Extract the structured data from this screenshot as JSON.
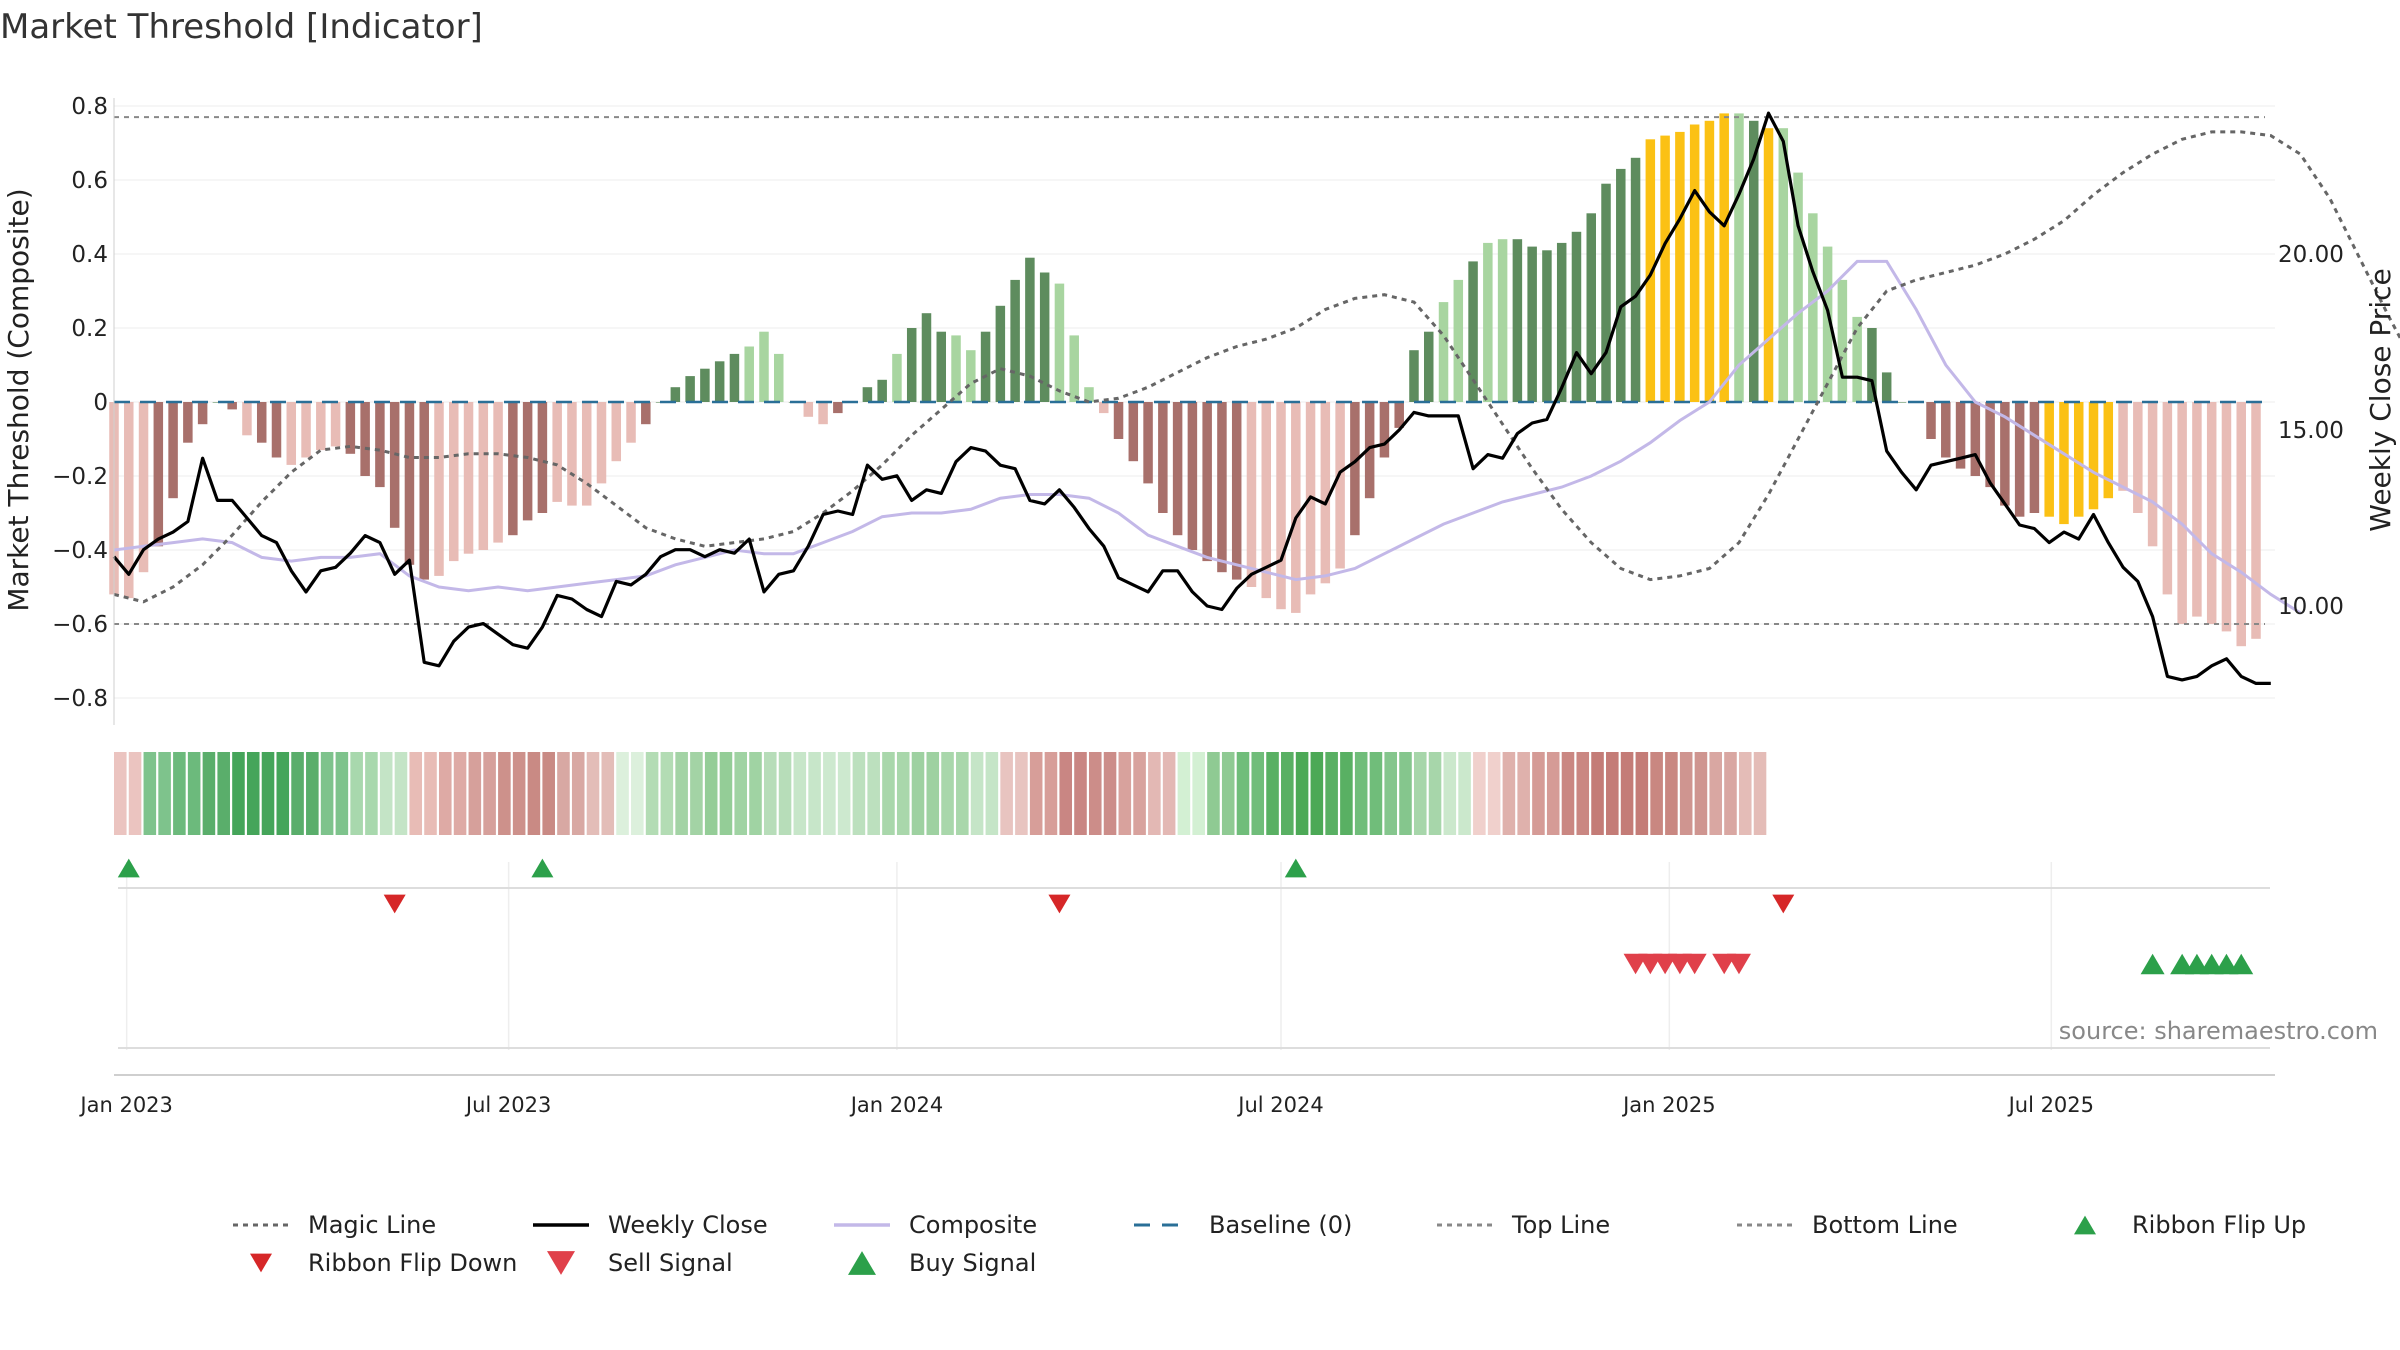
{
  "chart_data": {
    "type": "bar",
    "title": "Market Threshold [Indicator]",
    "ylabel_left": "Market Threshold (Composite)",
    "ylabel_right": "Weekly Close Price",
    "ylim_left": [
      -0.88,
      0.86
    ],
    "ylim_right": [
      7.0,
      26.0
    ],
    "yticks_left": [
      {
        "v": 0.8,
        "label": "0.8"
      },
      {
        "v": 0.6,
        "label": "0.6"
      },
      {
        "v": 0.4,
        "label": "0.4"
      },
      {
        "v": 0.2,
        "label": "0.2"
      },
      {
        "v": 0.0,
        "label": "0"
      },
      {
        "v": -0.2,
        "label": "−0.2"
      },
      {
        "v": -0.4,
        "label": "−0.4"
      },
      {
        "v": -0.6,
        "label": "−0.6"
      },
      {
        "v": -0.8,
        "label": "−0.8"
      }
    ],
    "yticks_right": [
      {
        "v": 20.0,
        "label": "20.00"
      },
      {
        "v": 15.0,
        "label": "15.00"
      },
      {
        "v": 10.0,
        "label": "10.00"
      }
    ],
    "x_range": [
      "2022-12-26",
      "2025-10-15"
    ],
    "xticks": [
      {
        "date": "2023-01-01",
        "label": "Jan 2023"
      },
      {
        "date": "2023-07-01",
        "label": "Jul 2023"
      },
      {
        "date": "2024-01-01",
        "label": "Jan 2024"
      },
      {
        "date": "2024-07-01",
        "label": "Jul 2024"
      },
      {
        "date": "2025-01-01",
        "label": "Jan 2025"
      },
      {
        "date": "2025-07-01",
        "label": "Jul 2025"
      }
    ],
    "start_date": "2022-12-26",
    "week_step_days": 7,
    "top_line": 0.77,
    "bottom_line": -0.6,
    "baseline": 0,
    "composite_bars": [
      -0.52,
      -0.53,
      -0.46,
      -0.39,
      -0.26,
      -0.11,
      -0.06,
      0.0,
      -0.02,
      -0.09,
      -0.11,
      -0.15,
      -0.17,
      -0.15,
      -0.13,
      -0.12,
      -0.14,
      -0.2,
      -0.23,
      -0.34,
      -0.44,
      -0.48,
      -0.47,
      -0.43,
      -0.41,
      -0.4,
      -0.38,
      -0.36,
      -0.32,
      -0.3,
      -0.27,
      -0.28,
      -0.28,
      -0.22,
      -0.16,
      -0.11,
      -0.06,
      0.0,
      0.04,
      0.07,
      0.09,
      0.11,
      0.13,
      0.15,
      0.19,
      0.13,
      0.0,
      -0.04,
      -0.06,
      -0.03,
      0.0,
      0.04,
      0.06,
      0.13,
      0.2,
      0.24,
      0.19,
      0.18,
      0.14,
      0.19,
      0.26,
      0.33,
      0.39,
      0.35,
      0.32,
      0.18,
      0.04,
      -0.03,
      -0.1,
      -0.16,
      -0.22,
      -0.3,
      -0.36,
      -0.4,
      -0.43,
      -0.46,
      -0.48,
      -0.5,
      -0.53,
      -0.56,
      -0.57,
      -0.52,
      -0.49,
      -0.45,
      -0.36,
      -0.26,
      -0.15,
      -0.07,
      0.14,
      0.19,
      0.27,
      0.33,
      0.38,
      0.43,
      0.44,
      0.44,
      0.42,
      0.41,
      0.43,
      0.46,
      0.51,
      0.59,
      0.63,
      0.66,
      0.71,
      0.72,
      0.73,
      0.75,
      0.76,
      0.78,
      0.78,
      0.76,
      0.74,
      0.74,
      0.62,
      0.51,
      0.42,
      0.33,
      0.23,
      0.2,
      0.08,
      0.0,
      0.0,
      -0.1,
      -0.15,
      -0.18,
      -0.2,
      -0.23,
      -0.28,
      -0.31,
      -0.3,
      -0.31,
      -0.33,
      -0.31,
      -0.29,
      -0.26,
      -0.24,
      -0.3,
      -0.39,
      -0.52,
      -0.6,
      -0.58,
      -0.6,
      -0.62,
      -0.66,
      -0.64
    ],
    "composite_bar_colors_legend": {
      "strong_positive": "#5e8c5e",
      "weak_positive": "#a8d5a0",
      "strong_negative": "#a8706b",
      "weak_negative": "#e8bcb6",
      "extreme": "#fbc114"
    },
    "bar_shades": "wwwsssssswsswwwwsssssswwwwwssswwwwwwssssssswwwswwsssswssswwssssswwwwssssssssswwwwwwwsssssswwswwsssssssssoooooowsowwwwwwssssssssssssooooo",
    "weekly_close": [
      11.4,
      10.9,
      11.6,
      11.9,
      12.1,
      12.4,
      14.2,
      13.0,
      13.0,
      12.5,
      12.0,
      11.8,
      11.0,
      10.4,
      11.0,
      11.1,
      11.5,
      12.0,
      11.8,
      10.9,
      11.3,
      8.4,
      8.3,
      9.0,
      9.4,
      9.5,
      9.2,
      8.9,
      8.8,
      9.4,
      10.3,
      10.2,
      9.9,
      9.7,
      10.7,
      10.6,
      10.9,
      11.4,
      11.6,
      11.6,
      11.4,
      11.6,
      11.5,
      11.9,
      10.4,
      10.9,
      11.0,
      11.7,
      12.6,
      12.7,
      12.6,
      14.0,
      13.6,
      13.7,
      13.0,
      13.3,
      13.2,
      14.1,
      14.5,
      14.4,
      14.0,
      13.9,
      13.0,
      12.9,
      13.3,
      12.8,
      12.2,
      11.7,
      10.8,
      10.6,
      10.4,
      11.0,
      11.0,
      10.4,
      10.0,
      9.9,
      10.5,
      10.9,
      11.1,
      11.3,
      12.5,
      13.1,
      12.9,
      13.8,
      14.1,
      14.5,
      14.6,
      15.0,
      15.5,
      15.4,
      15.4,
      15.4,
      13.9,
      14.3,
      14.2,
      14.9,
      15.2,
      15.3,
      16.2,
      17.2,
      16.6,
      17.2,
      18.5,
      18.8,
      19.4,
      20.3,
      21.0,
      21.8,
      21.2,
      20.8,
      21.7,
      22.7,
      24.0,
      23.2,
      20.8,
      19.5,
      18.4,
      16.5,
      16.5,
      16.4,
      14.4,
      13.8,
      13.3,
      14.0,
      14.1,
      14.2,
      14.3,
      13.5,
      12.9,
      12.3,
      12.2,
      11.8,
      12.1,
      11.9,
      12.6,
      11.8,
      11.1,
      10.7,
      9.7,
      8.0,
      7.9,
      8.0,
      8.3,
      8.5,
      8.0,
      7.8,
      7.8
    ],
    "magic_line": [
      -0.52,
      -0.54,
      -0.5,
      -0.44,
      -0.36,
      -0.27,
      -0.19,
      -0.13,
      -0.12,
      -0.13,
      -0.15,
      -0.15,
      -0.14,
      -0.14,
      -0.15,
      -0.17,
      -0.22,
      -0.28,
      -0.34,
      -0.37,
      -0.39,
      -0.38,
      -0.37,
      -0.35,
      -0.3,
      -0.24,
      -0.17,
      -0.09,
      -0.02,
      0.05,
      0.09,
      0.07,
      0.03,
      0.0,
      0.01,
      0.04,
      0.08,
      0.12,
      0.15,
      0.17,
      0.2,
      0.25,
      0.28,
      0.29,
      0.27,
      0.18,
      0.06,
      -0.06,
      -0.18,
      -0.29,
      -0.38,
      -0.45,
      -0.48,
      -0.47,
      -0.45,
      -0.38,
      -0.25,
      -0.1,
      0.05,
      0.2,
      0.3,
      0.33,
      0.35,
      0.37,
      0.4,
      0.44,
      0.49,
      0.56,
      0.62,
      0.67,
      0.71,
      0.73,
      0.73,
      0.72,
      0.67,
      0.55,
      0.39,
      0.23,
      0.08,
      -0.03,
      -0.11,
      -0.18,
      -0.23,
      -0.27,
      -0.28,
      -0.27,
      -0.25,
      -0.22,
      -0.28,
      -0.37,
      -0.44,
      -0.52,
      -0.57
    ],
    "magic_line_dates_step_days": 14,
    "composite_line": [
      -0.4,
      -0.39,
      -0.38,
      -0.37,
      -0.38,
      -0.42,
      -0.43,
      -0.42,
      -0.42,
      -0.41,
      -0.47,
      -0.5,
      -0.51,
      -0.5,
      -0.51,
      -0.5,
      -0.49,
      -0.48,
      -0.47,
      -0.44,
      -0.42,
      -0.4,
      -0.41,
      -0.41,
      -0.38,
      -0.35,
      -0.31,
      -0.3,
      -0.3,
      -0.29,
      -0.26,
      -0.25,
      -0.25,
      -0.26,
      -0.3,
      -0.36,
      -0.39,
      -0.42,
      -0.44,
      -0.46,
      -0.48,
      -0.47,
      -0.45,
      -0.41,
      -0.37,
      -0.33,
      -0.3,
      -0.27,
      -0.25,
      -0.23,
      -0.2,
      -0.16,
      -0.11,
      -0.05,
      0.0,
      0.1,
      0.17,
      0.24,
      0.3,
      0.38,
      0.38,
      0.25,
      0.1,
      0.0,
      -0.04,
      -0.09,
      -0.14,
      -0.19,
      -0.23,
      -0.27,
      -0.33,
      -0.41,
      -0.46,
      -0.52,
      -0.57
    ],
    "composite_line_dates_step_days": 14,
    "ribbon_colors": [
      "#ebc4c0",
      "#7ec38c",
      "#6cba7c",
      "#5aae6b",
      "#45a55a",
      "#45a55a",
      "#5aae6b",
      "#7ec38c",
      "#a8d8ad",
      "#c4e4c6",
      "#e8bcb6",
      "#deaaa5",
      "#d6a09b",
      "#cd918b",
      "#c98a84",
      "#d8a8a3",
      "#e3bdb8",
      "#dcf0dc",
      "#b3dcb4",
      "#a3d3a5",
      "#94cd97",
      "#a0d3a3",
      "#b7ddb9",
      "#c7e6c9",
      "#cde9cf",
      "#bce0be",
      "#a9d7ab",
      "#9ed1a1",
      "#a9d7ab",
      "#c5e5c7",
      "#e8c4c0",
      "#d79e99",
      "#c98683",
      "#cc8d89",
      "#d8a29d",
      "#e3b8b4",
      "#d3f0d3",
      "#8fca93",
      "#70bd7a",
      "#59b063",
      "#4ca956",
      "#59b063",
      "#70bd7a",
      "#85c68d",
      "#a7d6aa",
      "#cbe8cc",
      "#f0d0cc",
      "#dfb1ac",
      "#d59b96",
      "#ca8782",
      "#c47c77",
      "#c47c77",
      "#c98781",
      "#cf9590",
      "#d9a7a2",
      "#e4bcb7"
    ],
    "ribbon_step_days": 14,
    "markers": {
      "ribbon_flip_up": [
        "2023-01-02",
        "2023-07-17",
        "2024-07-08"
      ],
      "ribbon_flip_down": [
        "2023-05-08",
        "2024-03-18",
        "2025-02-24"
      ],
      "sell_signal": [
        "2024-12-16",
        "2024-12-23",
        "2024-12-30",
        "2025-01-06",
        "2025-01-13",
        "2025-01-27",
        "2025-02-03"
      ],
      "buy_signal": [
        "2025-08-18",
        "2025-09-01",
        "2025-09-08",
        "2025-09-15",
        "2025-09-22",
        "2025-09-29"
      ]
    },
    "legend_position": "bottom",
    "source": "source: sharemaestro.com",
    "legend": [
      {
        "key": "magic",
        "label": "Magic Line",
        "color": "#666666"
      },
      {
        "key": "close",
        "label": "Weekly Close",
        "color": "#000000"
      },
      {
        "key": "composite",
        "label": "Composite",
        "color": "#c3b8e8"
      },
      {
        "key": "baseline",
        "label": "Baseline (0)",
        "color": "#2a6f97"
      },
      {
        "key": "top",
        "label": "Top Line",
        "color": "#888888"
      },
      {
        "key": "bottom",
        "label": "Bottom Line",
        "color": "#888888"
      },
      {
        "key": "flipup",
        "label": "Ribbon Flip Up",
        "color": "#2ca04a"
      },
      {
        "key": "flipdown",
        "label": "Ribbon Flip Down",
        "color": "#d62728"
      },
      {
        "key": "sell",
        "label": "Sell Signal",
        "color": "#e0404a"
      },
      {
        "key": "buy",
        "label": "Buy Signal",
        "color": "#2ca04a"
      }
    ]
  }
}
